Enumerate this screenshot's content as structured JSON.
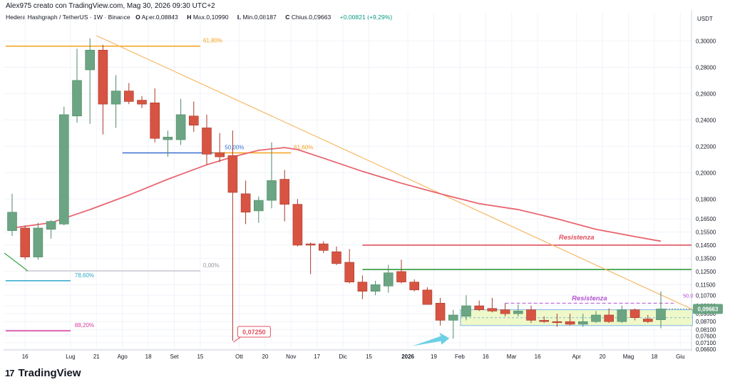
{
  "header": {
    "author_line": "Alex975 creato con TradingView.com, Mag 30, 2026 09:30 UTC+2",
    "symbol_line": "Hedera Hashgraph / TetherUS · 1W · Binance",
    "open_label": "O",
    "open_text": "Aper.0,08843",
    "high_label": "H",
    "high_text": "Max.0,10990",
    "low_label": "L",
    "low_text": "Min.0,08187",
    "close_label": "C",
    "close_text": "Chius.0,09663",
    "change_text": "+0,00821 (+9,29%)"
  },
  "brand": {
    "logo_glyph": "17",
    "name": "TradingView"
  },
  "colors": {
    "up": "#6ba583",
    "down": "#d75442",
    "ma": "#e8656f",
    "trendline": "#f7b35b",
    "fib_618": "#f7a21b",
    "fib_50": "#3b6fd1",
    "fib_786": "#2ea8c9",
    "fib_882": "#d63a9b",
    "resistance": "#e04f5f",
    "support": "#2e9c3c",
    "box_fill": "#eef8c8",
    "box_border": "#7fb7e8",
    "annotation_purple": "#b14fd1",
    "arrow": "#5ccbe2"
  },
  "chart_data": {
    "type": "candlestick",
    "y_unit": "USDT",
    "y_axis_label": "USDT",
    "ylim": [
      0.0655,
      0.311
    ],
    "y_ticks": [
      "0,30000",
      "0,28000",
      "0,26000",
      "0,24000",
      "0,22000",
      "0,20000",
      "0,18000",
      "0,16500",
      "0,15500",
      "0,14500",
      "0,13500",
      "0,12500",
      "0,11500",
      "0,10700",
      "0,09900",
      "0,09300",
      "0,08700",
      "0,08100",
      "0,07600",
      "0,07100",
      "0,06600"
    ],
    "x_ticks": [
      {
        "label": "16",
        "bar": 1
      },
      {
        "label": "Lug",
        "bar": 4.5
      },
      {
        "label": "21",
        "bar": 6.5
      },
      {
        "label": "Ago",
        "bar": 8.5
      },
      {
        "label": "18",
        "bar": 10.5
      },
      {
        "label": "Set",
        "bar": 12.5
      },
      {
        "label": "15",
        "bar": 14.5
      },
      {
        "label": "Ott",
        "bar": 17.5
      },
      {
        "label": "20",
        "bar": 19.5
      },
      {
        "label": "Nov",
        "bar": 21.5
      },
      {
        "label": "17",
        "bar": 23.5
      },
      {
        "label": "Dic",
        "bar": 25.5
      },
      {
        "label": "15",
        "bar": 27.5
      },
      {
        "label": "2026",
        "bar": 30.5,
        "bold": true
      },
      {
        "label": "19",
        "bar": 32.5
      },
      {
        "label": "Feb",
        "bar": 34.5
      },
      {
        "label": "16",
        "bar": 36.5
      },
      {
        "label": "Mar",
        "bar": 38.5
      },
      {
        "label": "16",
        "bar": 40.5
      },
      {
        "label": "Apr",
        "bar": 43.5
      },
      {
        "label": "20",
        "bar": 45.5
      },
      {
        "label": "Mag",
        "bar": 47.5
      },
      {
        "label": "18",
        "bar": 49.5
      },
      {
        "label": "Giu",
        "bar": 51.5
      }
    ],
    "candles": [
      {
        "o": 0.156,
        "h": 0.184,
        "l": 0.152,
        "c": 0.17
      },
      {
        "o": 0.158,
        "h": 0.16,
        "l": 0.134,
        "c": 0.136
      },
      {
        "o": 0.136,
        "h": 0.162,
        "l": 0.134,
        "c": 0.158
      },
      {
        "o": 0.157,
        "h": 0.164,
        "l": 0.15,
        "c": 0.163
      },
      {
        "o": 0.161,
        "h": 0.25,
        "l": 0.16,
        "c": 0.244
      },
      {
        "o": 0.243,
        "h": 0.294,
        "l": 0.238,
        "c": 0.27
      },
      {
        "o": 0.278,
        "h": 0.302,
        "l": 0.237,
        "c": 0.293
      },
      {
        "o": 0.293,
        "h": 0.297,
        "l": 0.229,
        "c": 0.252
      },
      {
        "o": 0.252,
        "h": 0.274,
        "l": 0.234,
        "c": 0.262
      },
      {
        "o": 0.262,
        "h": 0.268,
        "l": 0.252,
        "c": 0.254
      },
      {
        "o": 0.255,
        "h": 0.258,
        "l": 0.249,
        "c": 0.252
      },
      {
        "o": 0.253,
        "h": 0.264,
        "l": 0.223,
        "c": 0.226
      },
      {
        "o": 0.225,
        "h": 0.232,
        "l": 0.212,
        "c": 0.227
      },
      {
        "o": 0.225,
        "h": 0.256,
        "l": 0.221,
        "c": 0.244
      },
      {
        "o": 0.243,
        "h": 0.254,
        "l": 0.231,
        "c": 0.236
      },
      {
        "o": 0.234,
        "h": 0.244,
        "l": 0.206,
        "c": 0.214
      },
      {
        "o": 0.215,
        "h": 0.23,
        "l": 0.208,
        "c": 0.212
      },
      {
        "o": 0.213,
        "h": 0.232,
        "l": 0.0725,
        "c": 0.185
      },
      {
        "o": 0.184,
        "h": 0.194,
        "l": 0.161,
        "c": 0.17
      },
      {
        "o": 0.171,
        "h": 0.182,
        "l": 0.162,
        "c": 0.179
      },
      {
        "o": 0.179,
        "h": 0.223,
        "l": 0.173,
        "c": 0.194
      },
      {
        "o": 0.195,
        "h": 0.202,
        "l": 0.163,
        "c": 0.176
      },
      {
        "o": 0.176,
        "h": 0.18,
        "l": 0.144,
        "c": 0.145
      },
      {
        "o": 0.146,
        "h": 0.147,
        "l": 0.123,
        "c": 0.145
      },
      {
        "o": 0.146,
        "h": 0.148,
        "l": 0.139,
        "c": 0.141
      },
      {
        "o": 0.14,
        "h": 0.144,
        "l": 0.13,
        "c": 0.131
      },
      {
        "o": 0.132,
        "h": 0.142,
        "l": 0.116,
        "c": 0.117
      },
      {
        "o": 0.117,
        "h": 0.122,
        "l": 0.104,
        "c": 0.11
      },
      {
        "o": 0.11,
        "h": 0.118,
        "l": 0.107,
        "c": 0.115
      },
      {
        "o": 0.114,
        "h": 0.13,
        "l": 0.109,
        "c": 0.124
      },
      {
        "o": 0.125,
        "h": 0.134,
        "l": 0.116,
        "c": 0.117
      },
      {
        "o": 0.117,
        "h": 0.119,
        "l": 0.11,
        "c": 0.111
      },
      {
        "o": 0.111,
        "h": 0.113,
        "l": 0.101,
        "c": 0.1
      },
      {
        "o": 0.101,
        "h": 0.105,
        "l": 0.084,
        "c": 0.088
      },
      {
        "o": 0.088,
        "h": 0.096,
        "l": 0.074,
        "c": 0.092
      },
      {
        "o": 0.091,
        "h": 0.107,
        "l": 0.088,
        "c": 0.099
      },
      {
        "o": 0.099,
        "h": 0.103,
        "l": 0.095,
        "c": 0.096
      },
      {
        "o": 0.097,
        "h": 0.105,
        "l": 0.094,
        "c": 0.095
      },
      {
        "o": 0.096,
        "h": 0.101,
        "l": 0.091,
        "c": 0.093
      },
      {
        "o": 0.093,
        "h": 0.1,
        "l": 0.091,
        "c": 0.095
      },
      {
        "o": 0.096,
        "h": 0.099,
        "l": 0.086,
        "c": 0.088
      },
      {
        "o": 0.088,
        "h": 0.091,
        "l": 0.086,
        "c": 0.087
      },
      {
        "o": 0.087,
        "h": 0.093,
        "l": 0.083,
        "c": 0.0868
      },
      {
        "o": 0.087,
        "h": 0.093,
        "l": 0.084,
        "c": 0.085
      },
      {
        "o": 0.085,
        "h": 0.093,
        "l": 0.083,
        "c": 0.087
      },
      {
        "o": 0.087,
        "h": 0.095,
        "l": 0.086,
        "c": 0.092
      },
      {
        "o": 0.092,
        "h": 0.097,
        "l": 0.086,
        "c": 0.087
      },
      {
        "o": 0.087,
        "h": 0.099,
        "l": 0.086,
        "c": 0.096
      },
      {
        "o": 0.096,
        "h": 0.097,
        "l": 0.088,
        "c": 0.09
      },
      {
        "o": 0.089,
        "h": 0.092,
        "l": 0.086,
        "c": 0.087
      },
      {
        "o": 0.0884,
        "h": 0.1099,
        "l": 0.0819,
        "c": 0.0966
      }
    ],
    "moving_average": [
      {
        "bar": 0,
        "value": 0.158
      },
      {
        "bar": 3,
        "value": 0.162
      },
      {
        "bar": 6,
        "value": 0.172
      },
      {
        "bar": 9,
        "value": 0.183
      },
      {
        "bar": 12,
        "value": 0.195
      },
      {
        "bar": 15,
        "value": 0.206
      },
      {
        "bar": 17,
        "value": 0.212
      },
      {
        "bar": 19,
        "value": 0.217
      },
      {
        "bar": 21,
        "value": 0.219
      },
      {
        "bar": 22,
        "value": 0.2175
      },
      {
        "bar": 24,
        "value": 0.211
      },
      {
        "bar": 27,
        "value": 0.201
      },
      {
        "bar": 30,
        "value": 0.192
      },
      {
        "bar": 33,
        "value": 0.184
      },
      {
        "bar": 36,
        "value": 0.1765
      },
      {
        "bar": 39,
        "value": 0.172
      },
      {
        "bar": 42,
        "value": 0.165
      },
      {
        "bar": 45,
        "value": 0.157
      },
      {
        "bar": 48,
        "value": 0.1515
      },
      {
        "bar": 50,
        "value": 0.148
      }
    ],
    "current_price_label": "0,09663",
    "low_callout": {
      "text": "0,07250",
      "bar": 17,
      "value": 0.0725
    },
    "levels": [
      {
        "name": "fib-618-top",
        "label": "61,80%",
        "value": 0.296,
        "from": -0.5,
        "to": 14.5,
        "color_key": "fib_618"
      },
      {
        "name": "fib-50",
        "label": "50,00%",
        "value": 0.215,
        "from": 8.5,
        "to": 16.5,
        "color_key": "fib_50"
      },
      {
        "name": "fib-618-mid",
        "label": "61,60%",
        "value": 0.215,
        "from": 15.5,
        "to": 21.5,
        "color_key": "fib_618"
      },
      {
        "name": "fib-0",
        "label": "0,00%",
        "value": 0.1255,
        "from": 1,
        "to": 14.5,
        "color_key": "grey"
      },
      {
        "name": "fib-786",
        "label": "78,60%",
        "value": 0.118,
        "from": -0.5,
        "to": 4.5,
        "color_key": "fib_786"
      },
      {
        "name": "fib-882",
        "label": "88,20%",
        "value": 0.08,
        "from": -0.5,
        "to": 4.5,
        "color_key": "fib_882"
      }
    ],
    "resistance_line": {
      "label": "Resistenza",
      "value": 0.145,
      "from": 27,
      "to": 53
    },
    "support_line": {
      "value": 0.1265,
      "from": 27,
      "to": 53
    },
    "trendline": {
      "from_bar": 6.5,
      "from_value": 0.304,
      "to_bar": 52.5,
      "to_value": 0.096
    },
    "box": {
      "from": 35,
      "to": 52,
      "top": 0.096,
      "bottom": 0.084,
      "mid": 0.09
    },
    "resistance2": {
      "label": "Resistenza",
      "value": 0.101,
      "from": 38,
      "to": 51
    },
    "right_edge_label": "50,0"
  }
}
